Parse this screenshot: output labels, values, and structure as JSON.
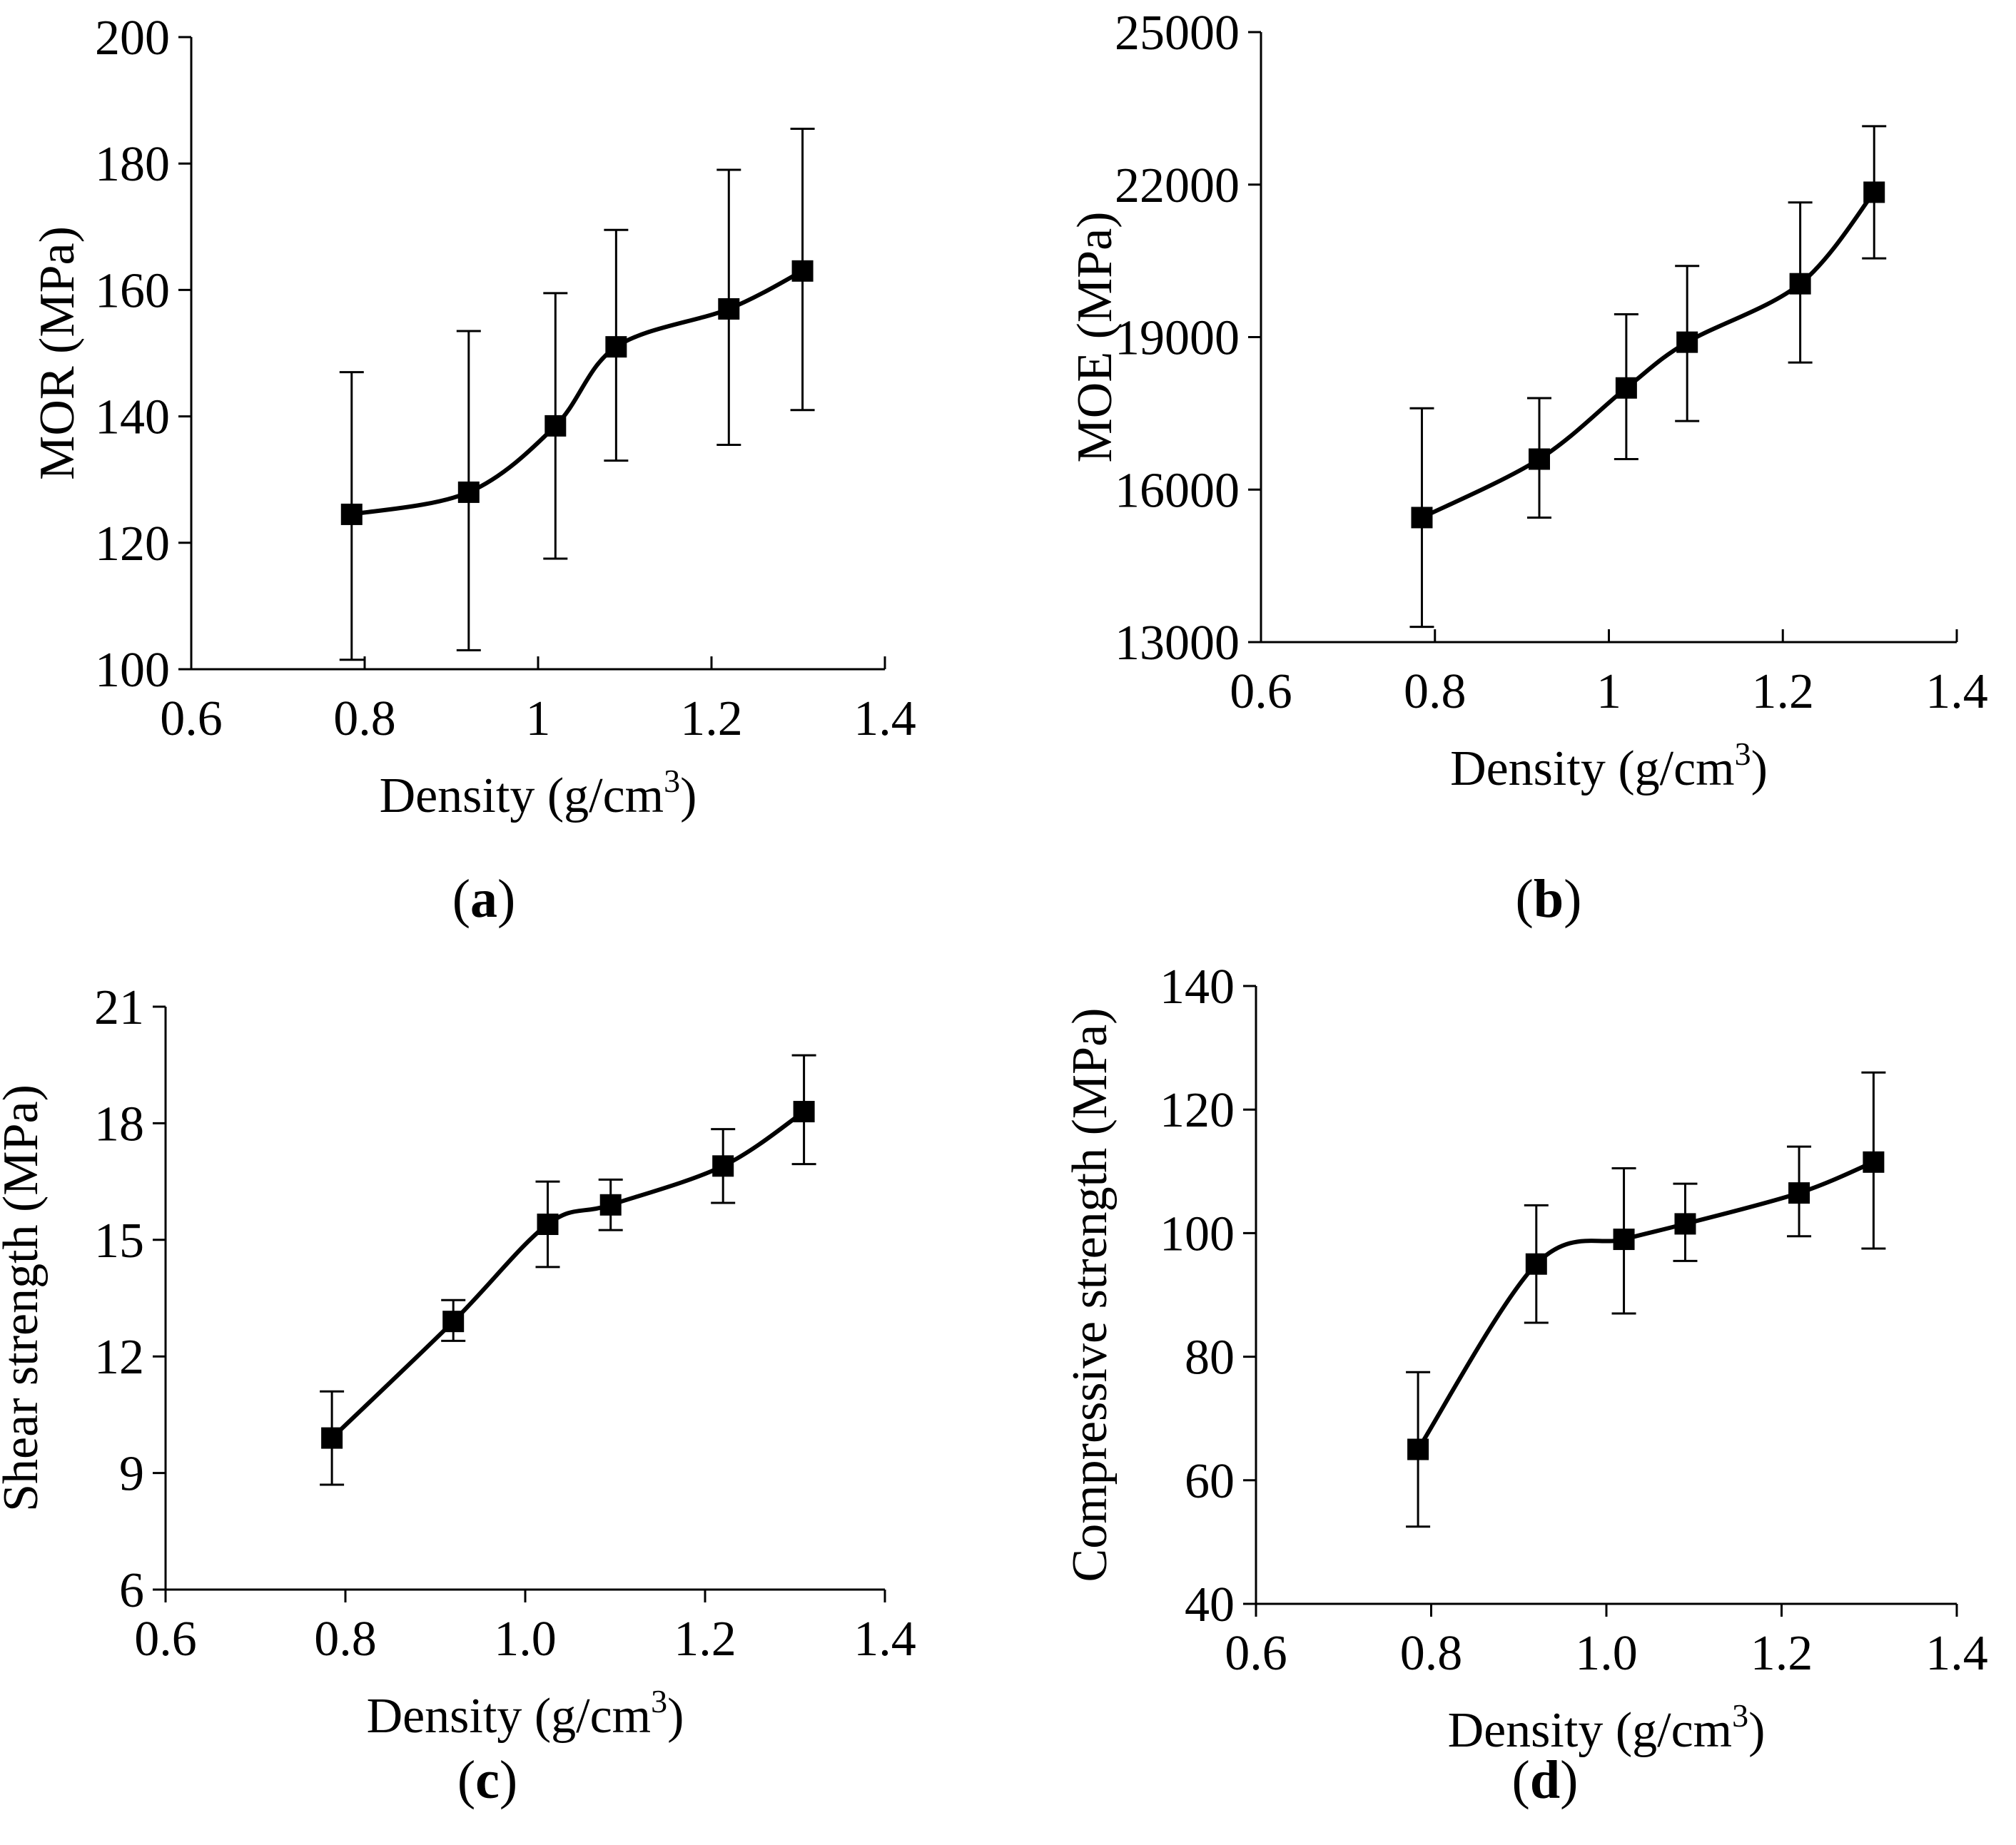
{
  "colors": {
    "line": "#000000",
    "marker": "#000000",
    "background": "#ffffff"
  },
  "chart_data": [
    {
      "id": "a",
      "type": "line",
      "panel_label": "a",
      "xlabel": "Density (g/cm",
      "xlabel_sup": "3",
      "xlabel_close": ")",
      "ylabel": "MOR (MPa)",
      "xlim": [
        0.6,
        1.4
      ],
      "ylim": [
        100,
        200
      ],
      "xticks": [
        0.6,
        0.8,
        1,
        1.2,
        1.4
      ],
      "xtick_labels": [
        "0.6",
        "0.8",
        "1",
        "1.2",
        "1.4"
      ],
      "yticks": [
        100,
        120,
        140,
        160,
        180,
        200
      ],
      "ytick_labels": [
        "100",
        "120",
        "140",
        "160",
        "180",
        "200"
      ],
      "grid": false,
      "series": [
        {
          "name": "MOR",
          "x": [
            0.785,
            0.92,
            1.02,
            1.09,
            1.22,
            1.305
          ],
          "y": [
            124.5,
            128,
            138.5,
            151,
            157,
            163
          ],
          "err_low": [
            101.5,
            103,
            117.5,
            133,
            135.5,
            141
          ],
          "err_high": [
            147,
            153.5,
            159.5,
            169.5,
            179,
            185.5
          ]
        }
      ]
    },
    {
      "id": "b",
      "type": "line",
      "panel_label": "b",
      "xlabel": "Density (g/cm",
      "xlabel_sup": "3",
      "xlabel_close": ")",
      "ylabel": "MOE (MPa)",
      "xlim": [
        0.6,
        1.4
      ],
      "ylim": [
        13000,
        25000
      ],
      "xticks": [
        0.6,
        0.8,
        1,
        1.2,
        1.4
      ],
      "xtick_labels": [
        "0.6",
        "0.8",
        "1",
        "1.2",
        "1.4"
      ],
      "yticks": [
        13000,
        16000,
        19000,
        22000,
        25000
      ],
      "ytick_labels": [
        "13000",
        "16000",
        "19000",
        "22000",
        "25000"
      ],
      "grid": false,
      "series": [
        {
          "name": "MOE",
          "x": [
            0.785,
            0.92,
            1.02,
            1.09,
            1.22,
            1.305
          ],
          "y": [
            15450,
            16600,
            18000,
            18900,
            20050,
            21850
          ],
          "err_low": [
            13300,
            15450,
            16600,
            17350,
            18500,
            20550
          ],
          "err_high": [
            17600,
            17800,
            19450,
            20400,
            21650,
            23150
          ]
        }
      ]
    },
    {
      "id": "c",
      "type": "line",
      "panel_label": "c",
      "xlabel": "Density (g/cm",
      "xlabel_sup": "3",
      "xlabel_close": ")",
      "ylabel": "Shear strength (MPa)",
      "xlim": [
        0.6,
        1.4
      ],
      "ylim": [
        6,
        21
      ],
      "xticks": [
        0.6,
        0.8,
        1.0,
        1.2,
        1.4
      ],
      "xtick_labels": [
        "0.6",
        "0.8",
        "1.0",
        "1.2",
        "1.4"
      ],
      "yticks": [
        6,
        9,
        12,
        15,
        18,
        21
      ],
      "ytick_labels": [
        "6",
        "9",
        "12",
        "15",
        "18",
        "21"
      ],
      "grid": false,
      "series": [
        {
          "name": "Shear strength",
          "x": [
            0.785,
            0.92,
            1.025,
            1.095,
            1.22,
            1.31
          ],
          "y": [
            9.9,
            12.9,
            15.4,
            15.9,
            16.9,
            18.3
          ],
          "err_low": [
            8.7,
            12.4,
            14.3,
            15.25,
            15.95,
            16.95
          ],
          "err_high": [
            11.1,
            13.45,
            16.5,
            16.55,
            17.85,
            19.75
          ]
        }
      ]
    },
    {
      "id": "d",
      "type": "line",
      "panel_label": "d",
      "xlabel": "Density (g/cm",
      "xlabel_sup": "3",
      "xlabel_close": ")",
      "ylabel": "Compressive strength (MPa)",
      "xlim": [
        0.6,
        1.4
      ],
      "ylim": [
        40,
        140
      ],
      "xticks": [
        0.6,
        0.8,
        1.0,
        1.2,
        1.4
      ],
      "xtick_labels": [
        "0.6",
        "0.8",
        "1.0",
        "1.2",
        "1.4"
      ],
      "yticks": [
        40,
        60,
        80,
        100,
        120,
        140
      ],
      "ytick_labels": [
        "40",
        "60",
        "80",
        "100",
        "120",
        "140"
      ],
      "grid": false,
      "series": [
        {
          "name": "Compressive strength",
          "x": [
            0.785,
            0.92,
            1.02,
            1.09,
            1.22,
            1.305
          ],
          "y": [
            65,
            95,
            99,
            101.5,
            106.5,
            111.5
          ],
          "err_low": [
            52.5,
            85.5,
            87,
            95.5,
            99.5,
            97.5
          ],
          "err_high": [
            77.5,
            104.5,
            110.5,
            108,
            114,
            126
          ]
        }
      ]
    }
  ]
}
